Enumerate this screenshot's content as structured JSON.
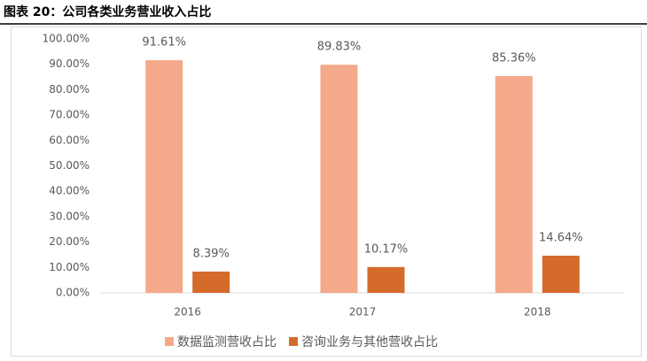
{
  "chart_data": {
    "type": "bar",
    "title": "图表 20：公司各类业务营业收入占比",
    "categories": [
      "2016",
      "2017",
      "2018"
    ],
    "series": [
      {
        "name": "数据监测营收占比",
        "color": "#f4a98a",
        "values": [
          91.61,
          89.83,
          85.36
        ],
        "value_labels": [
          "91.61%",
          "89.83%",
          "85.36%"
        ]
      },
      {
        "name": "咨询业务与其他营收占比",
        "color": "#d46b2b",
        "values": [
          8.39,
          10.17,
          14.64
        ],
        "value_labels": [
          "8.39%",
          "10.17%",
          "14.64%"
        ]
      }
    ],
    "ylim": [
      0,
      100
    ],
    "yticks": [
      {
        "value": 0,
        "label": "0.00%"
      },
      {
        "value": 10,
        "label": "10.00%"
      },
      {
        "value": 20,
        "label": "20.00%"
      },
      {
        "value": 30,
        "label": "30.00%"
      },
      {
        "value": 40,
        "label": "40.00%"
      },
      {
        "value": 50,
        "label": "50.00%"
      },
      {
        "value": 60,
        "label": "60.00%"
      },
      {
        "value": 70,
        "label": "70.00%"
      },
      {
        "value": 80,
        "label": "80.00%"
      },
      {
        "value": 90,
        "label": "90.00%"
      },
      {
        "value": 100,
        "label": "100.00%"
      }
    ],
    "grid": false
  }
}
